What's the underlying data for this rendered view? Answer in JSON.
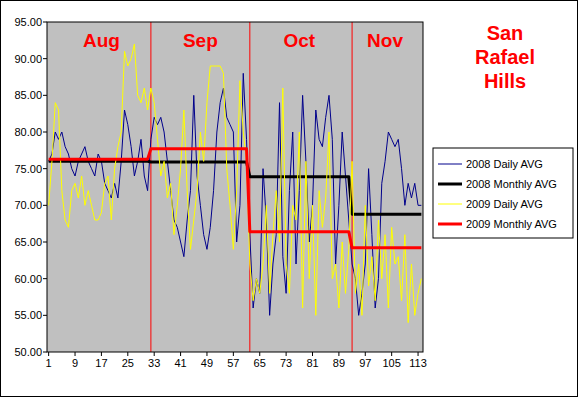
{
  "chart_data": {
    "type": "line",
    "title": "San Rafael Hills",
    "x": [
      1,
      2,
      3,
      4,
      5,
      6,
      7,
      8,
      9,
      10,
      11,
      12,
      13,
      14,
      15,
      16,
      17,
      18,
      19,
      20,
      21,
      22,
      23,
      24,
      25,
      26,
      27,
      28,
      29,
      30,
      31,
      32,
      33,
      34,
      35,
      36,
      37,
      38,
      39,
      40,
      41,
      42,
      43,
      44,
      45,
      46,
      47,
      48,
      49,
      50,
      51,
      52,
      53,
      54,
      55,
      56,
      57,
      58,
      59,
      60,
      61,
      62,
      63,
      64,
      65,
      66,
      67,
      68,
      69,
      70,
      71,
      72,
      73,
      74,
      75,
      76,
      77,
      78,
      79,
      80,
      81,
      82,
      83,
      84,
      85,
      86,
      87,
      88,
      89,
      90,
      91,
      92,
      93,
      94,
      95,
      96,
      97,
      98,
      99,
      100,
      101,
      102,
      103,
      104,
      105,
      106,
      107,
      108,
      109,
      110,
      111,
      112,
      113,
      114
    ],
    "series": [
      {
        "name": "2008 Daily AVG",
        "color": "#00008b",
        "values": [
          76,
          77,
          80,
          79,
          80,
          78,
          77,
          75,
          74,
          76,
          77,
          78,
          76,
          75,
          74,
          77,
          76,
          73,
          72,
          71,
          73,
          71,
          76,
          83,
          81,
          78,
          74,
          76,
          79,
          74,
          72,
          79,
          82,
          81,
          82,
          80,
          76,
          72,
          68,
          67,
          65,
          63,
          68,
          72,
          85,
          74,
          70,
          66,
          64,
          67,
          72,
          80,
          84,
          86,
          82,
          81,
          80,
          65,
          70,
          88,
          79,
          66,
          56,
          60,
          58,
          75,
          68,
          55,
          62,
          66,
          84,
          63,
          58,
          72,
          80,
          62,
          72,
          85,
          76,
          65,
          70,
          83,
          79,
          78,
          82,
          85,
          79,
          62,
          70,
          80,
          74,
          68,
          62,
          60,
          55,
          58,
          62,
          75,
          66,
          56,
          60,
          73,
          76,
          80,
          79,
          78,
          79,
          75,
          70,
          73,
          71,
          73,
          70,
          70
        ]
      },
      {
        "name": "2008 Monthly AVG",
        "color": "#000000",
        "values": [
          76,
          76,
          76,
          76,
          76,
          76,
          76,
          76,
          76,
          76,
          76,
          76,
          76,
          76,
          76,
          76,
          76,
          76,
          76,
          76,
          76,
          76,
          76,
          76,
          76,
          76,
          76,
          76,
          76,
          76,
          76,
          75.9,
          75.9,
          75.9,
          75.9,
          75.9,
          75.9,
          75.9,
          75.9,
          75.9,
          75.9,
          75.9,
          75.9,
          75.9,
          75.9,
          75.9,
          75.9,
          75.9,
          75.9,
          75.9,
          75.9,
          75.9,
          75.9,
          75.9,
          75.9,
          75.9,
          75.9,
          75.9,
          75.9,
          75.9,
          75.9,
          73.9,
          73.9,
          73.9,
          73.9,
          73.9,
          73.9,
          73.9,
          73.9,
          73.9,
          73.9,
          73.9,
          73.9,
          73.9,
          73.9,
          73.9,
          73.9,
          73.9,
          73.9,
          73.9,
          73.9,
          73.9,
          73.9,
          73.9,
          73.9,
          73.9,
          73.9,
          73.9,
          73.9,
          73.9,
          73.9,
          73.9,
          68.8,
          68.8,
          68.8,
          68.8,
          68.8,
          68.8,
          68.8,
          68.8,
          68.8,
          68.8,
          68.8,
          68.8,
          68.8,
          68.8,
          68.8,
          68.8,
          68.8,
          68.8,
          68.8,
          68.8,
          68.8,
          68.8
        ]
      },
      {
        "name": "2009 Daily AVG",
        "color": "#ffff00",
        "values": [
          70,
          76,
          84,
          83,
          72,
          68,
          67,
          72,
          73,
          71,
          74,
          70,
          72,
          70,
          68,
          68,
          69,
          73,
          74,
          68,
          75,
          78,
          80,
          91,
          89,
          90,
          92,
          85,
          84,
          86,
          83,
          86,
          84,
          79,
          74,
          76,
          71,
          73,
          66,
          70,
          75,
          83,
          72,
          64,
          68,
          72,
          80,
          76,
          84,
          89,
          89,
          89,
          89,
          88,
          75,
          70,
          64,
          72,
          87,
          80,
          76,
          62,
          57,
          60,
          58,
          62,
          70,
          58,
          66,
          72,
          65,
          86,
          62,
          58,
          70,
          68,
          80,
          56,
          76,
          60,
          70,
          55,
          72,
          67,
          71,
          80,
          60,
          62,
          56,
          65,
          58,
          64,
          76,
          58,
          62,
          55,
          70,
          59,
          63,
          57,
          68,
          60,
          66,
          56,
          67,
          62,
          63,
          57,
          66,
          54,
          62,
          55,
          58,
          60
        ]
      },
      {
        "name": "2009 Monthly AVG",
        "color": "#ff0000",
        "values": [
          76.3,
          76.3,
          76.3,
          76.3,
          76.3,
          76.3,
          76.3,
          76.3,
          76.3,
          76.3,
          76.3,
          76.3,
          76.3,
          76.3,
          76.3,
          76.3,
          76.3,
          76.3,
          76.3,
          76.3,
          76.3,
          76.3,
          76.3,
          76.3,
          76.3,
          76.3,
          76.3,
          76.3,
          76.3,
          76.3,
          76.3,
          77.7,
          77.7,
          77.7,
          77.7,
          77.7,
          77.7,
          77.7,
          77.7,
          77.7,
          77.7,
          77.7,
          77.7,
          77.7,
          77.7,
          77.7,
          77.7,
          77.7,
          77.7,
          77.7,
          77.7,
          77.7,
          77.7,
          77.7,
          77.7,
          77.7,
          77.7,
          77.7,
          77.7,
          77.7,
          77.7,
          66.4,
          66.4,
          66.4,
          66.4,
          66.4,
          66.4,
          66.4,
          66.4,
          66.4,
          66.4,
          66.4,
          66.4,
          66.4,
          66.4,
          66.4,
          66.4,
          66.4,
          66.4,
          66.4,
          66.4,
          66.4,
          66.4,
          66.4,
          66.4,
          66.4,
          66.4,
          66.4,
          66.4,
          66.4,
          66.4,
          66.4,
          64.2,
          64.2,
          64.2,
          64.2,
          64.2,
          64.2,
          64.2,
          64.2,
          64.2,
          64.2,
          64.2,
          64.2,
          64.2,
          64.2,
          64.2,
          64.2,
          64.2,
          64.2,
          64.2,
          64.2,
          64.2,
          64.2
        ]
      }
    ],
    "xlim": [
      0.5,
      114.5
    ],
    "xticks": [
      1,
      9,
      17,
      25,
      33,
      41,
      49,
      57,
      65,
      73,
      81,
      89,
      97,
      105,
      113
    ],
    "ylim": [
      50,
      95
    ],
    "yticks": [
      {
        "value": 50,
        "label": "50.00"
      },
      {
        "value": 55,
        "label": "55.00"
      },
      {
        "value": 60,
        "label": "60.00"
      },
      {
        "value": 65,
        "label": "65.00"
      },
      {
        "value": 70,
        "label": "70.00"
      },
      {
        "value": 75,
        "label": "75.00"
      },
      {
        "value": 80,
        "label": "80.00"
      },
      {
        "value": 85,
        "label": "85.00"
      },
      {
        "value": 90,
        "label": "90.00"
      },
      {
        "value": 95,
        "label": "95.00"
      }
    ],
    "annotations": [
      {
        "text": "Aug",
        "x": 17
      },
      {
        "text": "Sep",
        "x": 47
      },
      {
        "text": "Oct",
        "x": 77
      },
      {
        "text": "Nov",
        "x": 103
      }
    ],
    "boundaries": [
      32,
      62,
      93
    ],
    "grid": false,
    "legend": "right"
  }
}
